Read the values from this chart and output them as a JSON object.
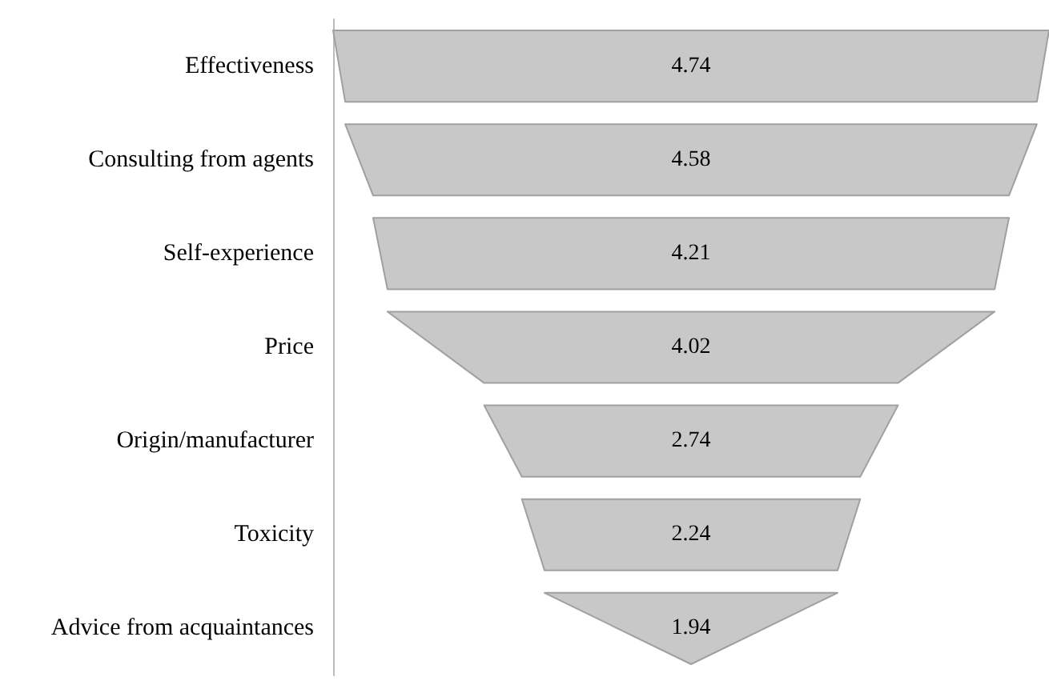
{
  "chart_data": {
    "type": "other",
    "categories": [
      "Effectiveness",
      "Consulting from agents",
      "Self-experience",
      "Price",
      "Origin/manufacturer",
      "Toxicity",
      "Advice from acquaintances"
    ],
    "values": [
      4.74,
      4.58,
      4.21,
      4.02,
      2.74,
      2.24,
      1.94
    ],
    "color": "#c8c8c8",
    "data_labels": true
  }
}
